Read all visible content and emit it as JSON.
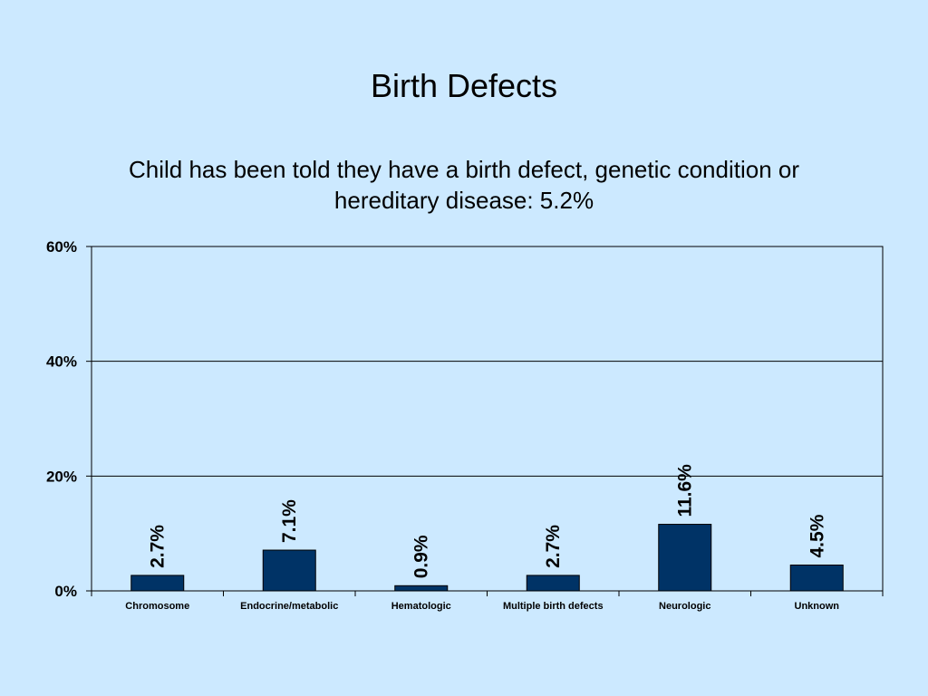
{
  "slide": {
    "title": "Birth Defects",
    "subtitle": "Child has been told they have a birth defect, genetic condition or hereditary disease:  5.2%"
  },
  "colors": {
    "background": "#cce9ff",
    "bar": "#003366",
    "axis": "#000000"
  },
  "chart_data": {
    "type": "bar",
    "title": "",
    "xlabel": "",
    "ylabel": "",
    "categories": [
      "Chromosome",
      "Endocrine/metabolic",
      "Hematologic",
      "Multiple birth defects",
      "Neurologic",
      "Unknown"
    ],
    "values": [
      2.7,
      7.1,
      0.9,
      2.7,
      11.6,
      4.5
    ],
    "data_labels": [
      "2.7%",
      "7.1%",
      "0.9%",
      "2.7%",
      "11.6%",
      "4.5%"
    ],
    "ylim": [
      0,
      60
    ],
    "y_ticks": [
      0,
      20,
      40,
      60
    ],
    "y_tick_labels": [
      "0%",
      "20%",
      "40%",
      "60%"
    ],
    "grid": true,
    "legend": "none"
  }
}
